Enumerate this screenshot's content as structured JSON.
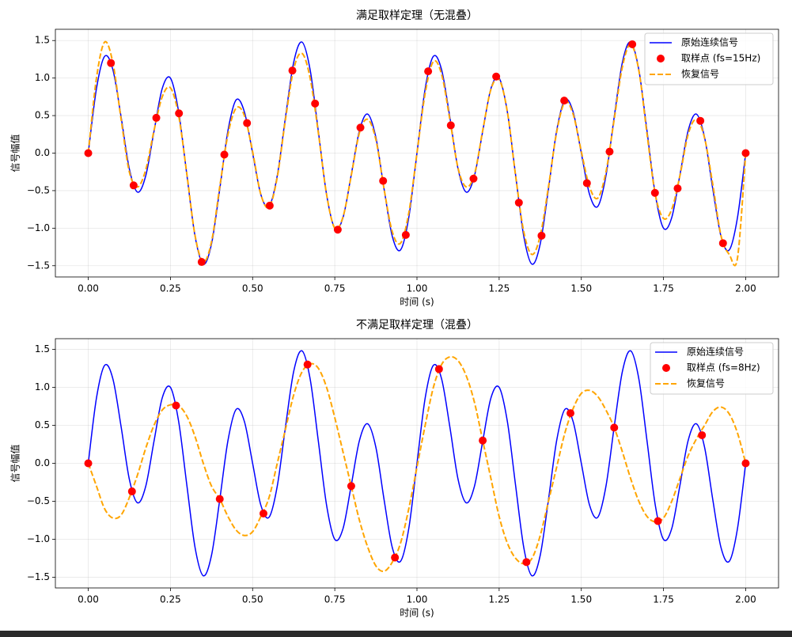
{
  "chart_data": [
    {
      "type": "line",
      "title": "满足取样定理（无混叠）",
      "xlabel": "时间 (s)",
      "ylabel": "信号幅值",
      "xlim": [
        -0.1,
        2.1
      ],
      "ylim": [
        -1.65,
        1.65
      ],
      "grid": true,
      "legend": "upper right",
      "xticks": [
        {
          "value": 0,
          "label": "0.00"
        },
        {
          "value": 0.25,
          "label": "0.25"
        },
        {
          "value": 0.5,
          "label": "0.50"
        },
        {
          "value": 0.75,
          "label": "0.75"
        },
        {
          "value": 1,
          "label": "1.00"
        },
        {
          "value": 1.25,
          "label": "1.25"
        },
        {
          "value": 1.5,
          "label": "1.50"
        },
        {
          "value": 1.75,
          "label": "1.75"
        },
        {
          "value": 2,
          "label": "2.00"
        }
      ],
      "yticks": [
        {
          "value": -1.5,
          "label": "−1.5"
        },
        {
          "value": -1,
          "label": "−1.0"
        },
        {
          "value": -0.5,
          "label": "−0.5"
        },
        {
          "value": 0,
          "label": "0.0"
        },
        0.5,
        {
          "value": 1,
          "label": "1.0"
        },
        1.5
      ],
      "x": [
        0,
        0.025,
        0.05,
        0.075,
        0.1,
        0.125,
        0.15,
        0.175,
        0.2,
        0.225,
        0.25,
        0.275,
        0.3,
        0.325,
        0.35,
        0.375,
        0.4,
        0.425,
        0.45,
        0.475,
        0.5,
        0.525,
        0.55,
        0.575,
        0.6,
        0.625,
        0.65,
        0.675,
        0.7,
        0.725,
        0.75,
        0.775,
        0.8,
        0.825,
        0.85,
        0.875,
        0.9,
        0.925,
        0.95,
        0.975,
        1,
        1.025,
        1.05,
        1.075,
        1.1,
        1.125,
        1.15,
        1.175,
        1.2,
        1.225,
        1.25,
        1.275,
        1.3,
        1.325,
        1.35,
        1.375,
        1.4,
        1.425,
        1.45,
        1.475,
        1.5,
        1.525,
        1.55,
        1.575,
        1.6,
        1.625,
        1.65,
        1.675,
        1.7,
        1.725,
        1.75,
        1.775,
        1.8,
        1.825,
        1.85,
        1.875,
        1.9,
        1.925,
        1.95,
        1.975,
        2
      ],
      "series": [
        {
          "name": "原始连续信号",
          "color": "#0000ff",
          "style": "solid",
          "values": [
            0,
            0.86,
            1.29,
            1.11,
            0.48,
            -0.21,
            -0.52,
            -0.3,
            0.29,
            0.86,
            1,
            0.55,
            -0.29,
            -1.11,
            -1.48,
            -1.21,
            -0.48,
            0.3,
            0.71,
            0.55,
            0,
            -0.55,
            -0.71,
            -0.3,
            0.48,
            1.21,
            1.48,
            1.11,
            0.29,
            -0.55,
            -1,
            -0.86,
            -0.29,
            0.3,
            0.52,
            0.21,
            -0.48,
            -1.11,
            -1.29,
            -0.86,
            0,
            0.86,
            1.29,
            1.11,
            0.48,
            -0.21,
            -0.52,
            -0.3,
            0.29,
            0.86,
            1,
            0.55,
            -0.29,
            -1.11,
            -1.48,
            -1.21,
            -0.48,
            0.3,
            0.71,
            0.55,
            0,
            -0.55,
            -0.71,
            -0.3,
            0.48,
            1.21,
            1.48,
            1.11,
            0.29,
            -0.55,
            -1,
            -0.86,
            -0.29,
            0.3,
            0.52,
            0.21,
            -0.48,
            -1.11,
            -1.29,
            -0.86,
            0
          ]
        },
        {
          "name": "取样点 (fs=15Hz)",
          "color": "#ff0000",
          "style": "points",
          "x": [
            0,
            0.069,
            0.138,
            0.207,
            0.276,
            0.345,
            0.414,
            0.483,
            0.552,
            0.621,
            0.69,
            0.759,
            0.828,
            0.897,
            0.966,
            1.034,
            1.103,
            1.172,
            1.241,
            1.31,
            1.379,
            1.448,
            1.517,
            1.586,
            1.655,
            1.724,
            1.793,
            1.862,
            1.931,
            2
          ],
          "values": [
            0,
            1.2,
            -0.43,
            0.47,
            0.53,
            -1.45,
            -0.02,
            0.4,
            -0.7,
            1.1,
            0.66,
            -1.02,
            0.34,
            -0.37,
            -1.09,
            1.09,
            0.37,
            -0.34,
            1.02,
            -0.66,
            -1.1,
            0.7,
            -0.4,
            0.02,
            1.45,
            -0.53,
            -0.47,
            0.43,
            -1.2,
            0
          ]
        },
        {
          "name": "恢复信号",
          "color": "#ffa500",
          "style": "dashed",
          "values": [
            0,
            1,
            1.48,
            1.2,
            0.45,
            -0.25,
            -0.45,
            -0.22,
            0.3,
            0.75,
            0.87,
            0.5,
            -0.28,
            -1.1,
            -1.45,
            -1.18,
            -0.45,
            0.25,
            0.6,
            0.5,
            0.02,
            -0.55,
            -0.72,
            -0.32,
            0.45,
            1.12,
            1.33,
            1,
            0.27,
            -0.55,
            -1,
            -0.85,
            -0.3,
            0.27,
            0.45,
            0.18,
            -0.48,
            -1.05,
            -1.2,
            -0.8,
            0,
            0.8,
            1.22,
            1.05,
            0.45,
            -0.2,
            -0.45,
            -0.28,
            0.3,
            0.85,
            0.98,
            0.55,
            -0.3,
            -1.05,
            -1.35,
            -1.1,
            -0.45,
            0.28,
            0.68,
            0.52,
            0.02,
            -0.45,
            -0.6,
            -0.25,
            0.45,
            1.15,
            1.45,
            1.1,
            0.25,
            -0.55,
            -0.87,
            -0.75,
            -0.3,
            0.25,
            0.45,
            0.2,
            -0.42,
            -1.1,
            -1.35,
            -1.4,
            0
          ]
        }
      ]
    },
    {
      "type": "line",
      "title": "不满足取样定理（混叠）",
      "xlabel": "时间 (s)",
      "ylabel": "信号幅值",
      "xlim": [
        -0.1,
        2.1
      ],
      "ylim": [
        -1.64,
        1.64
      ],
      "grid": true,
      "legend": "upper right",
      "xticks": [
        {
          "value": 0,
          "label": "0.00"
        },
        {
          "value": 0.25,
          "label": "0.25"
        },
        {
          "value": 0.5,
          "label": "0.50"
        },
        {
          "value": 0.75,
          "label": "0.75"
        },
        {
          "value": 1,
          "label": "1.00"
        },
        {
          "value": 1.25,
          "label": "1.25"
        },
        {
          "value": 1.5,
          "label": "1.50"
        },
        {
          "value": 1.75,
          "label": "1.75"
        },
        {
          "value": 2,
          "label": "2.00"
        }
      ],
      "yticks": [
        {
          "value": -1.5,
          "label": "−1.5"
        },
        {
          "value": -1,
          "label": "−1.0"
        },
        {
          "value": -0.5,
          "label": "−0.5"
        },
        {
          "value": 0,
          "label": "0.0"
        },
        0.5,
        {
          "value": 1,
          "label": "1.0"
        },
        1.5
      ],
      "x": [
        0,
        0.025,
        0.05,
        0.075,
        0.1,
        0.125,
        0.15,
        0.175,
        0.2,
        0.225,
        0.25,
        0.275,
        0.3,
        0.325,
        0.35,
        0.375,
        0.4,
        0.425,
        0.45,
        0.475,
        0.5,
        0.525,
        0.55,
        0.575,
        0.6,
        0.625,
        0.65,
        0.675,
        0.7,
        0.725,
        0.75,
        0.775,
        0.8,
        0.825,
        0.85,
        0.875,
        0.9,
        0.925,
        0.95,
        0.975,
        1,
        1.025,
        1.05,
        1.075,
        1.1,
        1.125,
        1.15,
        1.175,
        1.2,
        1.225,
        1.25,
        1.275,
        1.3,
        1.325,
        1.35,
        1.375,
        1.4,
        1.425,
        1.45,
        1.475,
        1.5,
        1.525,
        1.55,
        1.575,
        1.6,
        1.625,
        1.65,
        1.675,
        1.7,
        1.725,
        1.75,
        1.775,
        1.8,
        1.825,
        1.85,
        1.875,
        1.9,
        1.925,
        1.95,
        1.975,
        2
      ],
      "series": [
        {
          "name": "原始连续信号",
          "color": "#0000ff",
          "style": "solid",
          "values": [
            0,
            0.86,
            1.29,
            1.11,
            0.48,
            -0.21,
            -0.52,
            -0.3,
            0.29,
            0.86,
            1,
            0.55,
            -0.29,
            -1.11,
            -1.48,
            -1.21,
            -0.48,
            0.3,
            0.71,
            0.55,
            0,
            -0.55,
            -0.71,
            -0.3,
            0.48,
            1.21,
            1.48,
            1.11,
            0.29,
            -0.55,
            -1,
            -0.86,
            -0.29,
            0.3,
            0.52,
            0.21,
            -0.48,
            -1.11,
            -1.29,
            -0.86,
            0,
            0.86,
            1.29,
            1.11,
            0.48,
            -0.21,
            -0.52,
            -0.3,
            0.29,
            0.86,
            1,
            0.55,
            -0.29,
            -1.11,
            -1.48,
            -1.21,
            -0.48,
            0.3,
            0.71,
            0.55,
            0,
            -0.55,
            -0.71,
            -0.3,
            0.48,
            1.21,
            1.48,
            1.11,
            0.29,
            -0.55,
            -1,
            -0.86,
            -0.29,
            0.3,
            0.52,
            0.21,
            -0.48,
            -1.11,
            -1.29,
            -0.86,
            0
          ]
        },
        {
          "name": "取样点 (fs=8Hz)",
          "color": "#ff0000",
          "style": "points",
          "x": [
            0,
            0.133,
            0.267,
            0.4,
            0.533,
            0.667,
            0.8,
            0.933,
            1.067,
            1.2,
            1.333,
            1.467,
            1.6,
            1.733,
            1.867,
            2
          ],
          "values": [
            0,
            -0.37,
            0.76,
            -0.47,
            -0.66,
            1.3,
            -0.3,
            -1.24,
            1.24,
            0.3,
            -1.3,
            0.66,
            0.47,
            -0.76,
            0.37,
            0
          ]
        },
        {
          "name": "恢复信号",
          "color": "#ffa500",
          "style": "dashed",
          "values": [
            0,
            -0.3,
            -0.6,
            -0.72,
            -0.68,
            -0.45,
            -0.15,
            0.2,
            0.5,
            0.7,
            0.77,
            0.76,
            0.62,
            0.35,
            0,
            -0.3,
            -0.47,
            -0.7,
            -0.88,
            -0.95,
            -0.9,
            -0.7,
            -0.45,
            0,
            0.45,
            0.9,
            1.2,
            1.31,
            1.25,
            1,
            0.6,
            0.15,
            -0.3,
            -0.75,
            -1.1,
            -1.35,
            -1.42,
            -1.3,
            -1.05,
            -0.6,
            -0.05,
            0.5,
            1,
            1.3,
            1.4,
            1.35,
            1.15,
            0.8,
            0.3,
            -0.2,
            -0.7,
            -1.05,
            -1.25,
            -1.32,
            -1.25,
            -0.95,
            -0.5,
            -0.05,
            0.4,
            0.72,
            0.92,
            0.96,
            0.88,
            0.7,
            0.47,
            0.15,
            -0.2,
            -0.5,
            -0.7,
            -0.77,
            -0.72,
            -0.5,
            -0.2,
            0.1,
            0.32,
            0.5,
            0.68,
            0.74,
            0.65,
            0.4,
            0
          ]
        }
      ]
    }
  ]
}
